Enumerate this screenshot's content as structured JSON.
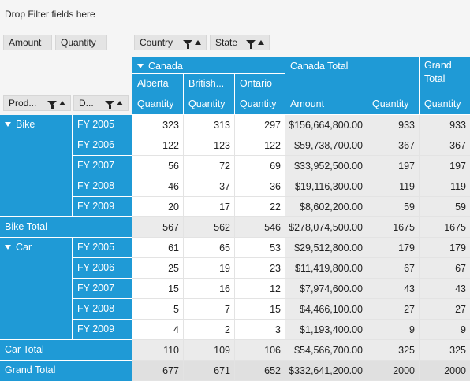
{
  "filter_area": {
    "hint": "Drop Filter fields here"
  },
  "value_fields": [
    "Amount",
    "Quantity"
  ],
  "column_fields": [
    "Country",
    "State"
  ],
  "row_fields": [
    "Prod...",
    "D..."
  ],
  "column_headers": {
    "country": "Canada",
    "states": [
      "Alberta",
      "British...",
      "Ontario"
    ],
    "canada_total": "Canada Total",
    "grand_total": "Grand Total",
    "measure_quantity": "Quantity",
    "measure_amount": "Amount"
  },
  "rows": [
    {
      "product": "Bike",
      "year": "FY 2005",
      "alberta": "323",
      "british": "313",
      "ontario": "297",
      "amount": "$156,664,800.00",
      "qty": "933",
      "grand": "933"
    },
    {
      "product": "",
      "year": "FY 2006",
      "alberta": "122",
      "british": "123",
      "ontario": "122",
      "amount": "$59,738,700.00",
      "qty": "367",
      "grand": "367"
    },
    {
      "product": "",
      "year": "FY 2007",
      "alberta": "56",
      "british": "72",
      "ontario": "69",
      "amount": "$33,952,500.00",
      "qty": "197",
      "grand": "197"
    },
    {
      "product": "",
      "year": "FY 2008",
      "alberta": "46",
      "british": "37",
      "ontario": "36",
      "amount": "$19,116,300.00",
      "qty": "119",
      "grand": "119"
    },
    {
      "product": "",
      "year": "FY 2009",
      "alberta": "20",
      "british": "17",
      "ontario": "22",
      "amount": "$8,602,200.00",
      "qty": "59",
      "grand": "59"
    },
    {
      "total": "Bike Total",
      "alberta": "567",
      "british": "562",
      "ontario": "546",
      "amount": "$278,074,500.00",
      "qty": "1675",
      "grand": "1675"
    },
    {
      "product": "Car",
      "year": "FY 2005",
      "alberta": "61",
      "british": "65",
      "ontario": "53",
      "amount": "$29,512,800.00",
      "qty": "179",
      "grand": "179"
    },
    {
      "product": "",
      "year": "FY 2006",
      "alberta": "25",
      "british": "19",
      "ontario": "23",
      "amount": "$11,419,800.00",
      "qty": "67",
      "grand": "67"
    },
    {
      "product": "",
      "year": "FY 2007",
      "alberta": "15",
      "british": "16",
      "ontario": "12",
      "amount": "$7,974,600.00",
      "qty": "43",
      "grand": "43"
    },
    {
      "product": "",
      "year": "FY 2008",
      "alberta": "5",
      "british": "7",
      "ontario": "15",
      "amount": "$4,466,100.00",
      "qty": "27",
      "grand": "27"
    },
    {
      "product": "",
      "year": "FY 2009",
      "alberta": "4",
      "british": "2",
      "ontario": "3",
      "amount": "$1,193,400.00",
      "qty": "9",
      "grand": "9"
    },
    {
      "total": "Car Total",
      "alberta": "110",
      "british": "109",
      "ontario": "106",
      "amount": "$54,566,700.00",
      "qty": "325",
      "grand": "325"
    },
    {
      "total": "Grand Total",
      "alberta": "677",
      "british": "671",
      "ontario": "652",
      "amount": "$332,641,200.00",
      "qty": "2000",
      "grand": "2000"
    }
  ],
  "colors": {
    "header_blue": "#1f9ad6",
    "total_grey": "#ebebeb"
  }
}
